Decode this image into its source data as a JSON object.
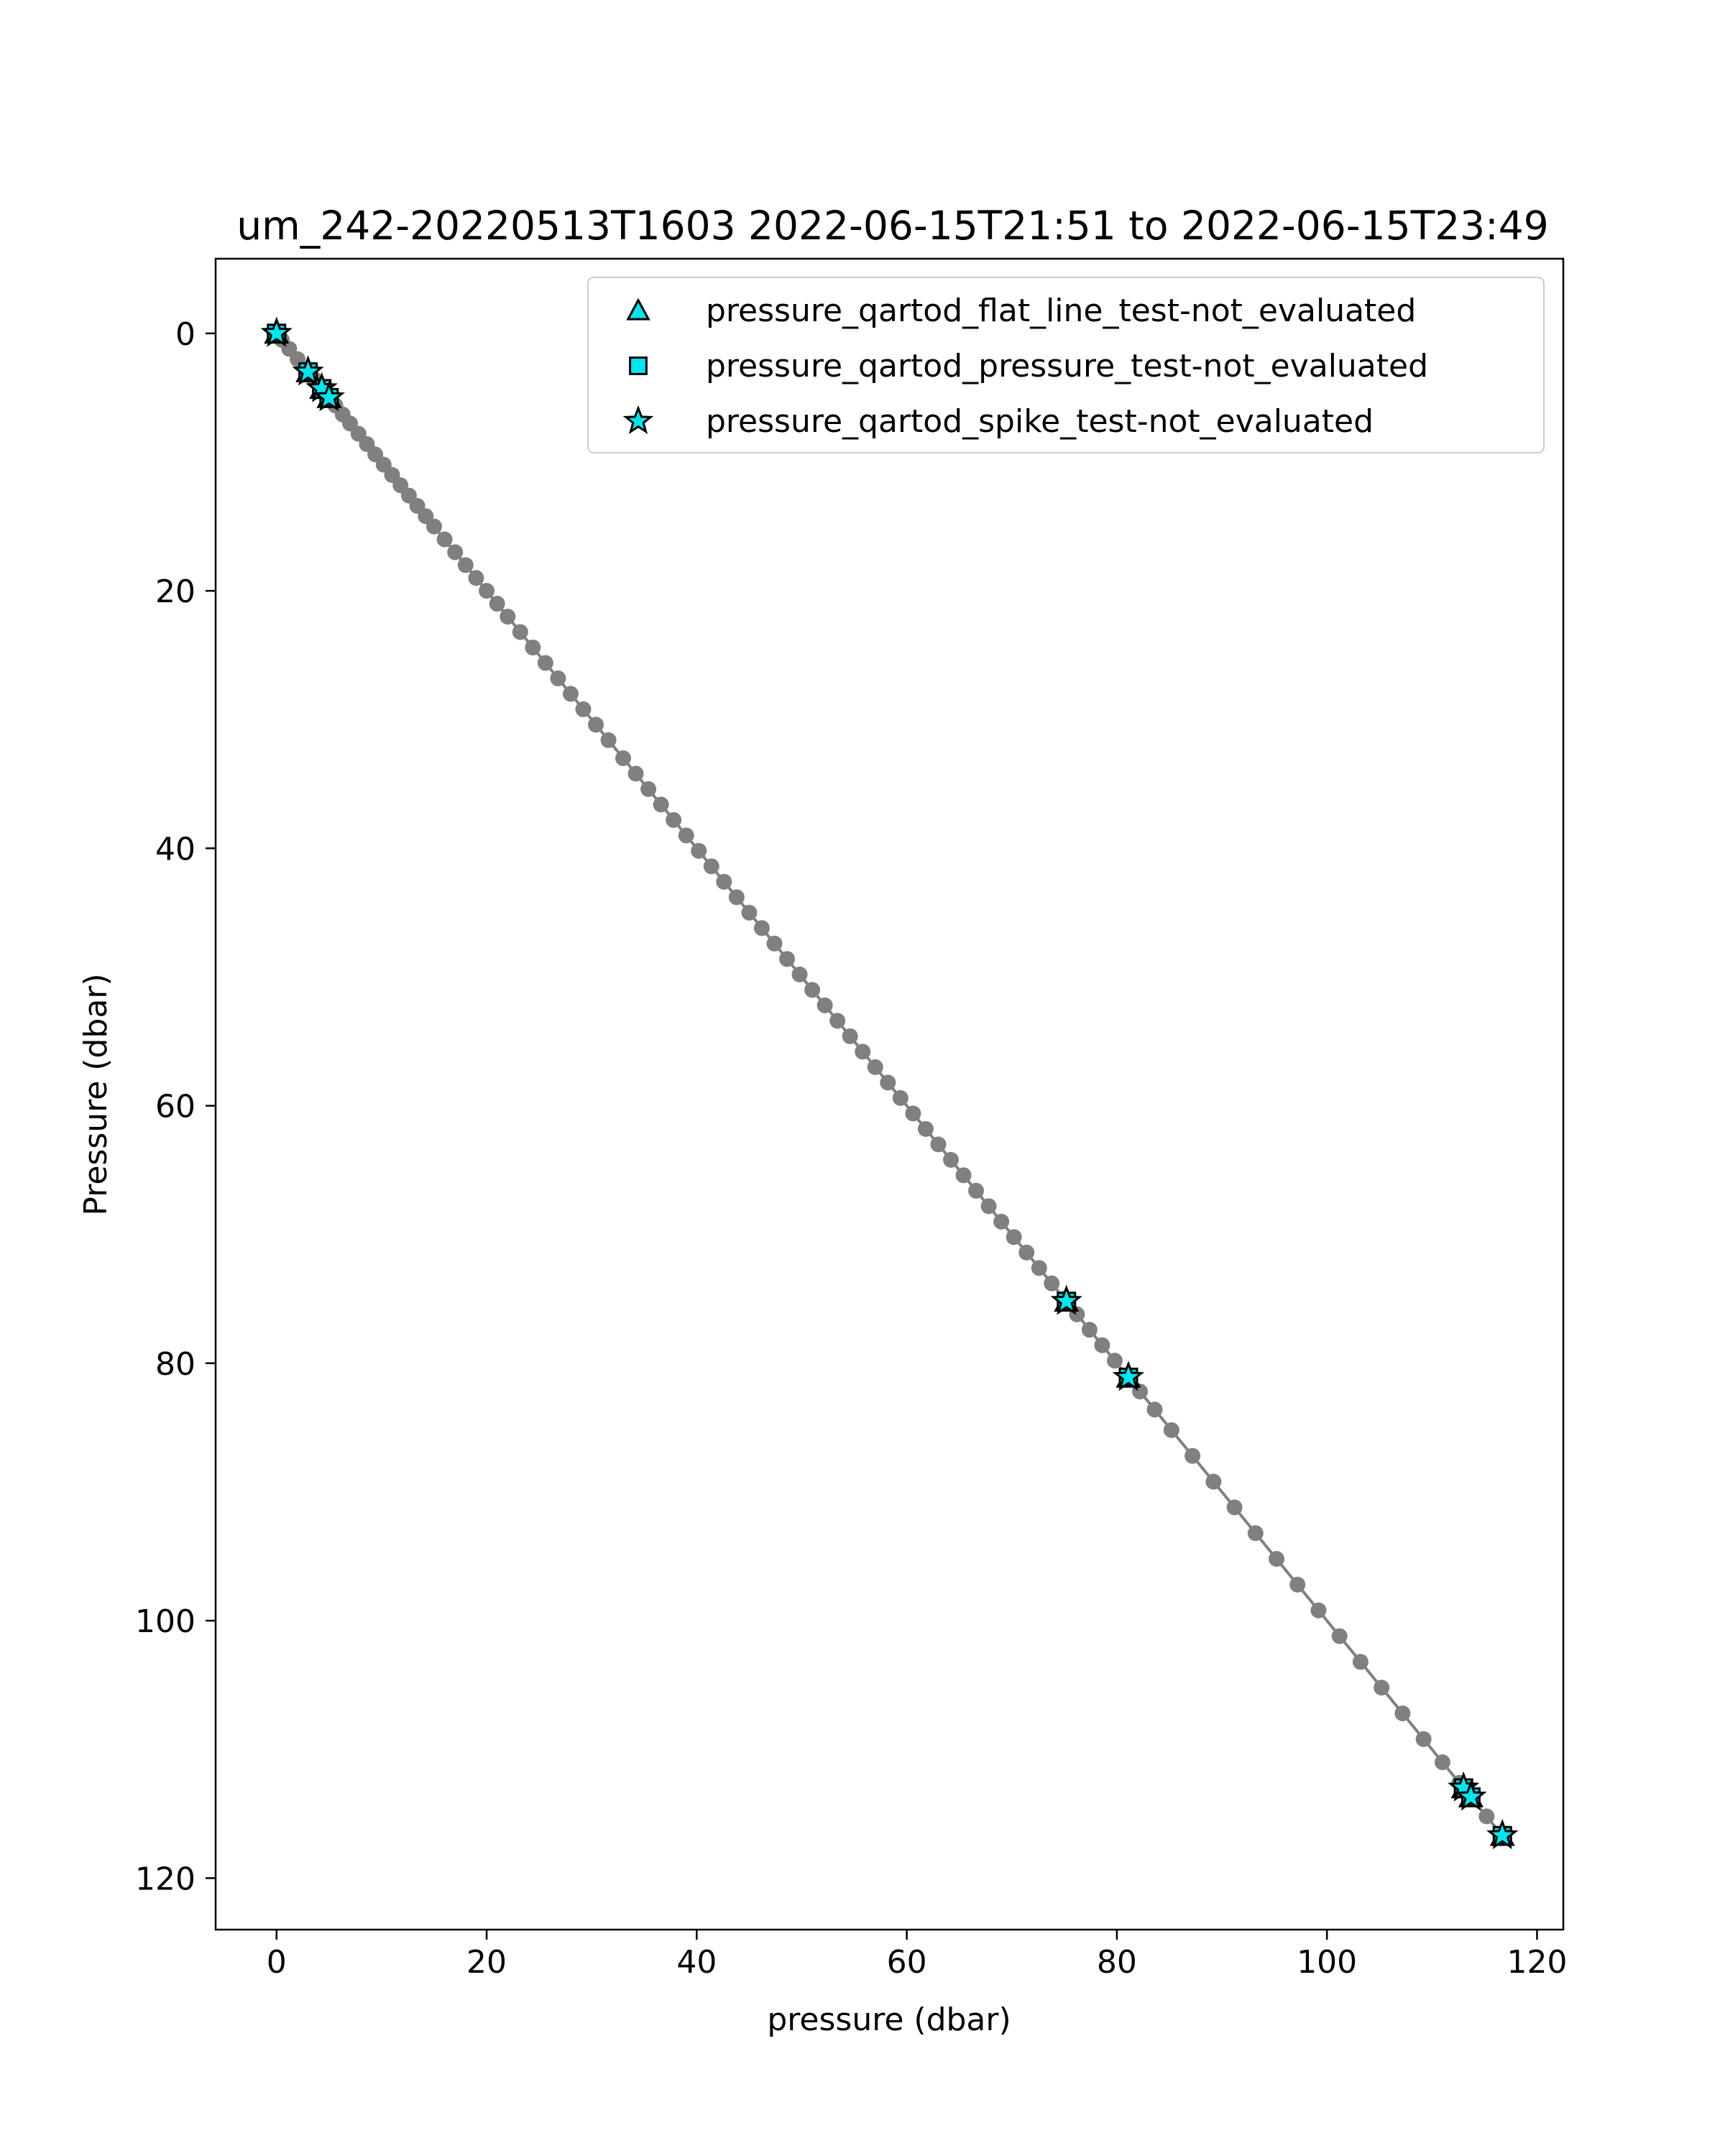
{
  "chart_data": {
    "type": "scatter",
    "title": "um_242-20220513T1603 2022-06-15T21:51 to 2022-06-15T23:49",
    "xlabel": "pressure (dbar)",
    "ylabel": "Pressure (dbar)",
    "xlim": [
      -5.8,
      122.5
    ],
    "ylim": [
      124,
      -5.8
    ],
    "y_inverted": true,
    "xticks": [
      0,
      20,
      40,
      60,
      80,
      100,
      120
    ],
    "xtick_labels": [
      "0",
      "20",
      "40",
      "60",
      "80",
      "100",
      "120"
    ],
    "yticks": [
      0,
      20,
      40,
      60,
      80,
      100,
      120
    ],
    "ytick_labels": [
      "0",
      "20",
      "40",
      "60",
      "80",
      "100",
      "120"
    ],
    "grid": false,
    "legend_position": "upper-right",
    "background_series": {
      "color": "#808080",
      "line": [
        [
          0.0,
          0.0
        ],
        [
          116.7,
          116.7
        ]
      ],
      "x": [
        0.0,
        0.5,
        1.2,
        2.0,
        2.8,
        3.5,
        4.3,
        5.0,
        5.6,
        6.3,
        7.0,
        7.8,
        8.6,
        9.4,
        10.2,
        11.0,
        11.8,
        12.6,
        13.4,
        14.2,
        15.0,
        16.0,
        17.0,
        18.0,
        19.0,
        20.0,
        21.0,
        22.0,
        23.2,
        24.4,
        25.6,
        26.8,
        28.0,
        29.2,
        30.4,
        31.6,
        33.0,
        34.2,
        35.4,
        36.6,
        37.8,
        39.0,
        40.2,
        41.4,
        42.6,
        43.8,
        45.0,
        46.2,
        47.4,
        48.6,
        49.8,
        51.0,
        52.2,
        53.4,
        54.6,
        55.8,
        57.0,
        58.2,
        59.4,
        60.6,
        61.8,
        63.0,
        64.2,
        65.4,
        66.6,
        67.8,
        69.0,
        70.2,
        71.4,
        72.6,
        73.8,
        75.0,
        76.2,
        77.4,
        78.6,
        79.8,
        81.0,
        82.2,
        83.6,
        85.2,
        87.2,
        89.2,
        91.2,
        93.2,
        95.2,
        97.2,
        99.2,
        101.2,
        103.2,
        105.2,
        107.2,
        109.2,
        111.0,
        112.6,
        113.8,
        115.2,
        116.7
      ],
      "y": [
        0.0,
        0.5,
        1.2,
        2.0,
        2.8,
        3.5,
        4.3,
        5.0,
        5.6,
        6.3,
        7.0,
        7.8,
        8.6,
        9.4,
        10.2,
        11.0,
        11.8,
        12.6,
        13.4,
        14.2,
        15.0,
        16.0,
        17.0,
        18.0,
        19.0,
        20.0,
        21.0,
        22.0,
        23.2,
        24.4,
        25.6,
        26.8,
        28.0,
        29.2,
        30.4,
        31.6,
        33.0,
        34.2,
        35.4,
        36.6,
        37.8,
        39.0,
        40.2,
        41.4,
        42.6,
        43.8,
        45.0,
        46.2,
        47.4,
        48.6,
        49.8,
        51.0,
        52.2,
        53.4,
        54.6,
        55.8,
        57.0,
        58.2,
        59.4,
        60.6,
        61.8,
        63.0,
        64.2,
        65.4,
        66.6,
        67.8,
        69.0,
        70.2,
        71.4,
        72.6,
        73.8,
        75.0,
        76.2,
        77.4,
        78.6,
        79.8,
        81.0,
        82.2,
        83.6,
        85.2,
        87.2,
        89.2,
        91.2,
        93.2,
        95.2,
        97.2,
        99.2,
        101.2,
        103.2,
        105.2,
        107.2,
        109.2,
        111.0,
        112.6,
        113.8,
        115.2,
        116.7
      ]
    },
    "series": [
      {
        "name": "pressure_qartod_flat_line_test-not_evaluated",
        "marker": "triangle",
        "color": "#00e5ee",
        "x": [
          0.0,
          3.0,
          4.3,
          5.0,
          75.2,
          81.1,
          113.0,
          113.7,
          116.7
        ],
        "y": [
          0.0,
          3.0,
          4.3,
          5.0,
          75.2,
          81.1,
          113.0,
          113.7,
          116.7
        ]
      },
      {
        "name": "pressure_qartod_pressure_test-not_evaluated",
        "marker": "square",
        "color": "#00e5ee",
        "x": [
          0.0,
          3.0,
          4.3,
          5.0,
          75.2,
          81.1,
          113.0,
          113.7,
          116.7
        ],
        "y": [
          0.0,
          3.0,
          4.3,
          5.0,
          75.2,
          81.1,
          113.0,
          113.7,
          116.7
        ]
      },
      {
        "name": "pressure_qartod_spike_test-not_evaluated",
        "marker": "star",
        "color": "#00e5ee",
        "x": [
          0.0,
          3.0,
          4.3,
          5.0,
          75.2,
          81.1,
          113.0,
          113.7,
          116.7
        ],
        "y": [
          0.0,
          3.0,
          4.3,
          5.0,
          75.2,
          81.1,
          113.0,
          113.7,
          116.7
        ]
      }
    ]
  }
}
